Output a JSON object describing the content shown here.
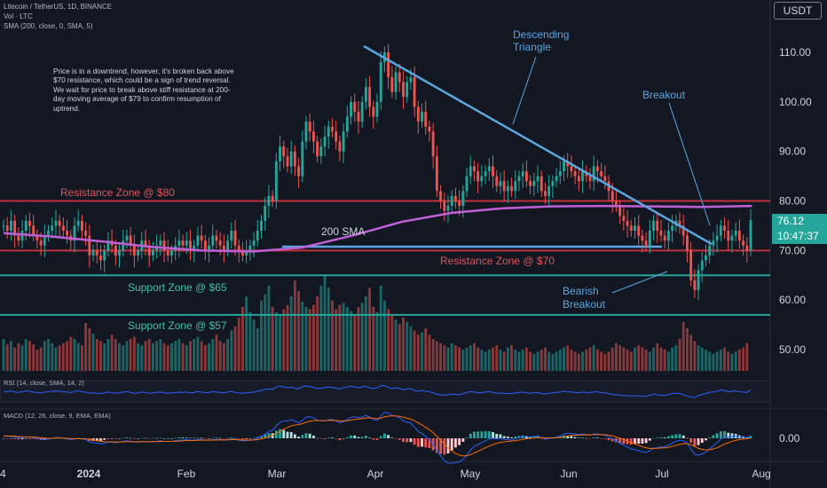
{
  "header": {
    "symbol": "Litecoin / TetherUS, 1D, BINANCE",
    "volume": "Vol · LTC",
    "sma": "SMA (200, close, 0, SMA, 5)"
  },
  "currency_button": "USDT",
  "note": "Price is in a downtrend, however, it's broken back above $70 resistance, which could be a sign of trend reversal. We wait for price to break above stiff resistance at 200-day moving average of $79 to confirm resumption of uptrend.",
  "annotations": {
    "descending_triangle": "Descending Triangle",
    "breakout": "Breakout",
    "bearish_breakout": "Bearish Breakout",
    "resistance_80": "Resistance Zone @ $80",
    "resistance_70": "Resistance Zone @ $70",
    "support_65": "Support Zone @ $65",
    "support_57": "Support Zone @ $57",
    "sma_label": "200 SMA"
  },
  "last_price": {
    "value": "76.12",
    "countdown": "10:47:37"
  },
  "rsi_label": "RSI (14, close, SMA, 14, 2)",
  "macd_label": "MACD (12, 26, close, 9, EMA, EMA)",
  "colors": {
    "up": "#26a69a",
    "down": "#ef5350",
    "sma": "#c060d8",
    "resistance": "#c2303a",
    "support": "#26a69a",
    "trendline": "#5aa6e0",
    "rsi": "#2962ff",
    "macd": "#2962ff",
    "signal": "#ff6d00"
  },
  "chart_data": {
    "type": "candlestick",
    "price_axis": {
      "ticks": [
        "110.00",
        "100.00",
        "90.00",
        "80.00",
        "70.00",
        "60.00",
        "50.00"
      ]
    },
    "macd_axis": {
      "ticks": [
        "0.00"
      ]
    },
    "x_ticks": [
      "4",
      "2024",
      "Feb",
      "Mar",
      "Apr",
      "May",
      "Jun",
      "Jul",
      "Aug"
    ],
    "levels": {
      "resistance_high": 80,
      "resistance_low": 70,
      "support_high": 65,
      "support_low": 57
    },
    "sma200_approx": [
      [
        0,
        73.5
      ],
      [
        40,
        72.8
      ],
      [
        80,
        71.8
      ],
      [
        120,
        70.7
      ],
      [
        160,
        70.0
      ],
      [
        200,
        69.8
      ],
      [
        240,
        70.6
      ],
      [
        280,
        73.0
      ],
      [
        320,
        75.8
      ],
      [
        360,
        77.6
      ],
      [
        400,
        78.5
      ],
      [
        440,
        78.9
      ],
      [
        480,
        79.0
      ],
      [
        520,
        78.9
      ],
      [
        560,
        78.8
      ],
      [
        601,
        79.0
      ]
    ],
    "trendline": {
      "from": [
        122,
        110.5
      ],
      "to": [
        556,
        71.5
      ]
    },
    "close_series": [
      75,
      74,
      76,
      73,
      72,
      74,
      76,
      75,
      73,
      72,
      71,
      73,
      74,
      75,
      76,
      75,
      74,
      73,
      72,
      75,
      76,
      74,
      73,
      69,
      70,
      69,
      68,
      70,
      72,
      71,
      69,
      70,
      72,
      73,
      71,
      69,
      70,
      72,
      71,
      69,
      70,
      71,
      72,
      70,
      69,
      70,
      71,
      72,
      71,
      72,
      70,
      71,
      73,
      72,
      70,
      71,
      73,
      72,
      71,
      70,
      72,
      74,
      71,
      70,
      69,
      70,
      71,
      72,
      74,
      76,
      79,
      81,
      80,
      88,
      91,
      89,
      87,
      90,
      87,
      85,
      92,
      96,
      94,
      92,
      89,
      91,
      93,
      95,
      94,
      92,
      90,
      94,
      97,
      100,
      98,
      96,
      100,
      103,
      99,
      97,
      100,
      108,
      110,
      105,
      102,
      106,
      104,
      101,
      104,
      105,
      99,
      96,
      98,
      95,
      94,
      89,
      82,
      80,
      78,
      79,
      81,
      80,
      79,
      82,
      85,
      87,
      86,
      84,
      85,
      86,
      87,
      85,
      83,
      84,
      82,
      83,
      82,
      84,
      85,
      86,
      84,
      83,
      84,
      85,
      82,
      81,
      83,
      84,
      85,
      86,
      88,
      87,
      86,
      85,
      84,
      86,
      85,
      84,
      87,
      86,
      85,
      84,
      82,
      80,
      79,
      77,
      76,
      75,
      74,
      75,
      73,
      72,
      71,
      74,
      76,
      74,
      73,
      72,
      74,
      75,
      76,
      75,
      73,
      70,
      64,
      62,
      66,
      68,
      69,
      71,
      72,
      73,
      75,
      74,
      72,
      73,
      74,
      72,
      71,
      70,
      76.12
    ],
    "volume_series": [
      30,
      25,
      28,
      22,
      26,
      24,
      30,
      28,
      25,
      20,
      22,
      28,
      30,
      26,
      22,
      24,
      26,
      28,
      32,
      30,
      26,
      24,
      45,
      40,
      35,
      30,
      28,
      26,
      30,
      34,
      30,
      26,
      24,
      28,
      30,
      32,
      26,
      24,
      28,
      30,
      26,
      28,
      30,
      26,
      24,
      26,
      28,
      30,
      26,
      24,
      28,
      30,
      32,
      28,
      24,
      26,
      30,
      34,
      28,
      26,
      30,
      38,
      42,
      50,
      60,
      70,
      55,
      48,
      40,
      66,
      72,
      80,
      60,
      55,
      52,
      58,
      62,
      70,
      85,
      75,
      65,
      60,
      58,
      62,
      70,
      80,
      90,
      78,
      66,
      58,
      62,
      64,
      60,
      56,
      52,
      60,
      64,
      70,
      78,
      60,
      55,
      80,
      66,
      58,
      52,
      48,
      44,
      50,
      46,
      42,
      38,
      34,
      36,
      40,
      34,
      30,
      28,
      26,
      24,
      22,
      26,
      24,
      22,
      20,
      22,
      24,
      26,
      22,
      20,
      18,
      20,
      22,
      24,
      20,
      18,
      22,
      24,
      20,
      18,
      20,
      22,
      18,
      16,
      18,
      20,
      22,
      18,
      16,
      18,
      20,
      22,
      24,
      20,
      18,
      16,
      18,
      20,
      22,
      24,
      20,
      18,
      16,
      18,
      22,
      26,
      24,
      22,
      20,
      18,
      22,
      24,
      22,
      20,
      18,
      22,
      26,
      22,
      20,
      18,
      22,
      24,
      30,
      46,
      40,
      34,
      28,
      24,
      22,
      20,
      18,
      16,
      18,
      20,
      22,
      18,
      16,
      18,
      20,
      22,
      26
    ],
    "rsi_series": [
      50,
      48,
      52,
      46,
      44,
      48,
      52,
      50,
      46,
      44,
      42,
      46,
      48,
      50,
      52,
      50,
      48,
      46,
      44,
      50,
      52,
      48,
      46,
      40,
      42,
      40,
      38,
      42,
      46,
      44,
      40,
      42,
      46,
      48,
      44,
      40,
      42,
      46,
      44,
      40,
      42,
      44,
      46,
      42,
      40,
      42,
      44,
      46,
      44,
      46,
      42,
      44,
      48,
      46,
      42,
      44,
      48,
      46,
      44,
      42,
      46,
      50,
      44,
      42,
      40,
      42,
      44,
      46,
      50,
      54,
      60,
      62,
      60,
      72,
      76,
      72,
      68,
      72,
      66,
      62,
      74,
      78,
      74,
      70,
      64,
      66,
      68,
      72,
      70,
      66,
      62,
      68,
      72,
      76,
      72,
      68,
      72,
      76,
      68,
      64,
      68,
      78,
      80,
      70,
      64,
      68,
      64,
      58,
      62,
      64,
      54,
      50,
      54,
      50,
      48,
      42,
      34,
      32,
      30,
      32,
      36,
      34,
      32,
      38,
      44,
      48,
      46,
      42,
      44,
      46,
      48,
      44,
      40,
      42,
      38,
      40,
      38,
      42,
      44,
      46,
      42,
      40,
      42,
      44,
      38,
      36,
      40,
      42,
      44,
      46,
      50,
      48,
      46,
      44,
      42,
      46,
      44,
      42,
      48,
      46,
      44,
      42,
      38,
      34,
      32,
      30,
      28,
      27,
      26,
      28,
      26,
      25,
      24,
      30,
      36,
      32,
      30,
      28,
      34,
      38,
      40,
      38,
      32,
      26,
      20,
      18,
      28,
      34,
      38,
      44,
      48,
      50,
      56,
      54,
      48,
      50,
      52,
      48,
      46,
      44,
      58
    ],
    "macd_series": [
      0.4,
      0.3,
      0.3,
      0.2,
      0.1,
      0.1,
      0.2,
      0.2,
      0.1,
      0.0,
      -0.2,
      -0.2,
      -0.1,
      0.0,
      0.1,
      0.1,
      0.0,
      -0.1,
      -0.2,
      -0.1,
      0.0,
      -0.1,
      -0.2,
      -0.6,
      -0.7,
      -0.8,
      -0.9,
      -0.8,
      -0.6,
      -0.6,
      -0.7,
      -0.6,
      -0.5,
      -0.4,
      -0.5,
      -0.6,
      -0.6,
      -0.5,
      -0.5,
      -0.6,
      -0.5,
      -0.5,
      -0.4,
      -0.5,
      -0.5,
      -0.5,
      -0.4,
      -0.3,
      -0.3,
      -0.2,
      -0.3,
      -0.3,
      -0.2,
      -0.2,
      -0.3,
      -0.3,
      -0.2,
      -0.2,
      -0.2,
      -0.3,
      -0.2,
      -0.1,
      -0.2,
      -0.3,
      -0.4,
      -0.4,
      -0.3,
      -0.2,
      0.0,
      0.3,
      0.7,
      1.1,
      1.3,
      2.0,
      2.6,
      2.8,
      2.8,
      3.0,
      2.8,
      2.5,
      2.9,
      3.4,
      3.5,
      3.3,
      2.9,
      2.8,
      2.8,
      3.0,
      3.0,
      2.8,
      2.5,
      2.7,
      3.0,
      3.4,
      3.5,
      3.3,
      3.4,
      3.7,
      3.4,
      3.0,
      2.9,
      3.6,
      4.2,
      4.1,
      3.7,
      3.6,
      3.3,
      2.8,
      2.6,
      2.5,
      1.8,
      1.1,
      0.8,
      0.3,
      -0.2,
      -1.0,
      -2.0,
      -2.8,
      -3.6,
      -4.0,
      -4.0,
      -3.9,
      -3.8,
      -3.4,
      -2.7,
      -1.9,
      -1.3,
      -1.0,
      -0.7,
      -0.4,
      -0.1,
      0.0,
      -0.1,
      0.0,
      -0.2,
      -0.2,
      -0.3,
      -0.1,
      0.1,
      0.3,
      0.3,
      0.2,
      0.3,
      0.4,
      0.1,
      -0.1,
      0.0,
      0.1,
      0.2,
      0.4,
      0.7,
      0.8,
      0.8,
      0.7,
      0.6,
      0.7,
      0.6,
      0.5,
      0.7,
      0.7,
      0.6,
      0.5,
      0.2,
      -0.1,
      -0.4,
      -0.8,
      -1.1,
      -1.4,
      -1.7,
      -1.8,
      -2.0,
      -2.2,
      -2.3,
      -2.0,
      -1.6,
      -1.5,
      -1.4,
      -1.4,
      -1.1,
      -0.8,
      -0.5,
      -0.3,
      -0.4,
      -0.8,
      -1.7,
      -2.6,
      -2.7,
      -2.5,
      -2.2,
      -1.7,
      -1.2,
      -0.7,
      -0.1,
      0.2,
      0.2,
      0.3,
      0.4,
      0.3,
      0.2,
      0.1,
      0.4
    ]
  }
}
